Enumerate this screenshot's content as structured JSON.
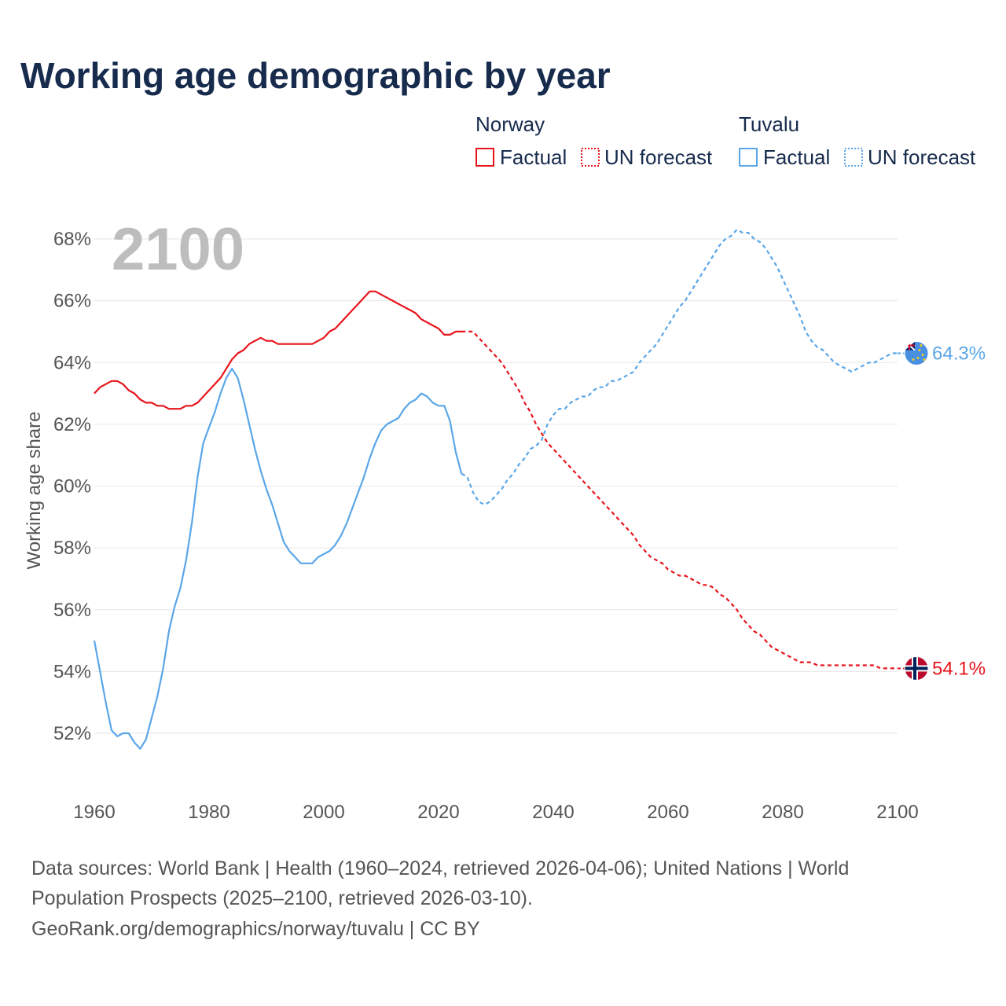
{
  "title": "Working age demographic by year",
  "current_year": "2100",
  "legend": {
    "norway": {
      "name": "Norway",
      "factual": "Factual",
      "forecast": "UN forecast",
      "color": "#e8141c"
    },
    "tuvalu": {
      "name": "Tuvalu",
      "factual": "Factual",
      "forecast": "UN forecast",
      "color": "#5aa6e8"
    }
  },
  "source": {
    "line1": "Data sources: World Bank | Health (1960–2024, retrieved 2026-04-06); United Nations | World",
    "line2": "Population Prospects (2025–2100, retrieved 2026-03-10).",
    "line3": "GeoRank.org/demographics/norway/tuvalu | CC BY"
  },
  "chart_data": {
    "type": "line",
    "title": "Working age demographic by year",
    "xlabel": "",
    "ylabel": "Working age share",
    "xlim": [
      1960,
      2103
    ],
    "ylim": [
      50.5,
      69.5
    ],
    "x_ticks": [
      "1960",
      "1980",
      "2000",
      "2020",
      "2040",
      "2060",
      "2080",
      "2100"
    ],
    "y_ticks": [
      "52%",
      "54%",
      "56%",
      "58%",
      "60%",
      "62%",
      "64%",
      "66%",
      "68%"
    ],
    "grid": true,
    "forecast_start": 2024,
    "series": [
      {
        "name": "Norway",
        "color": "#e8141c",
        "end_label": "54.1%",
        "factual": [
          [
            1960,
            63.0
          ],
          [
            1961,
            63.2
          ],
          [
            1962,
            63.3
          ],
          [
            1963,
            63.4
          ],
          [
            1964,
            63.4
          ],
          [
            1965,
            63.3
          ],
          [
            1966,
            63.1
          ],
          [
            1967,
            63.0
          ],
          [
            1968,
            62.8
          ],
          [
            1969,
            62.7
          ],
          [
            1970,
            62.7
          ],
          [
            1971,
            62.6
          ],
          [
            1972,
            62.6
          ],
          [
            1973,
            62.5
          ],
          [
            1974,
            62.5
          ],
          [
            1975,
            62.5
          ],
          [
            1976,
            62.6
          ],
          [
            1977,
            62.6
          ],
          [
            1978,
            62.7
          ],
          [
            1979,
            62.9
          ],
          [
            1980,
            63.1
          ],
          [
            1981,
            63.3
          ],
          [
            1982,
            63.5
          ],
          [
            1983,
            63.8
          ],
          [
            1984,
            64.1
          ],
          [
            1985,
            64.3
          ],
          [
            1986,
            64.4
          ],
          [
            1987,
            64.6
          ],
          [
            1988,
            64.7
          ],
          [
            1989,
            64.8
          ],
          [
            1990,
            64.7
          ],
          [
            1991,
            64.7
          ],
          [
            1992,
            64.6
          ],
          [
            1993,
            64.6
          ],
          [
            1994,
            64.6
          ],
          [
            1995,
            64.6
          ],
          [
            1996,
            64.6
          ],
          [
            1997,
            64.6
          ],
          [
            1998,
            64.6
          ],
          [
            1999,
            64.7
          ],
          [
            2000,
            64.8
          ],
          [
            2001,
            65.0
          ],
          [
            2002,
            65.1
          ],
          [
            2003,
            65.3
          ],
          [
            2004,
            65.5
          ],
          [
            2005,
            65.7
          ],
          [
            2006,
            65.9
          ],
          [
            2007,
            66.1
          ],
          [
            2008,
            66.3
          ],
          [
            2009,
            66.3
          ],
          [
            2010,
            66.2
          ],
          [
            2011,
            66.1
          ],
          [
            2012,
            66.0
          ],
          [
            2013,
            65.9
          ],
          [
            2014,
            65.8
          ],
          [
            2015,
            65.7
          ],
          [
            2016,
            65.6
          ],
          [
            2017,
            65.4
          ],
          [
            2018,
            65.3
          ],
          [
            2019,
            65.2
          ],
          [
            2020,
            65.1
          ],
          [
            2021,
            64.9
          ],
          [
            2022,
            64.9
          ],
          [
            2023,
            65.0
          ],
          [
            2024,
            65.0
          ]
        ],
        "forecast": [
          [
            2024,
            65.0
          ],
          [
            2025,
            65.0
          ],
          [
            2026,
            65.0
          ],
          [
            2027,
            64.8
          ],
          [
            2028,
            64.6
          ],
          [
            2029,
            64.4
          ],
          [
            2030,
            64.2
          ],
          [
            2031,
            64.0
          ],
          [
            2032,
            63.7
          ],
          [
            2033,
            63.4
          ],
          [
            2034,
            63.1
          ],
          [
            2035,
            62.7
          ],
          [
            2036,
            62.4
          ],
          [
            2037,
            62.0
          ],
          [
            2038,
            61.7
          ],
          [
            2039,
            61.4
          ],
          [
            2040,
            61.2
          ],
          [
            2041,
            61.0
          ],
          [
            2042,
            60.8
          ],
          [
            2043,
            60.6
          ],
          [
            2044,
            60.4
          ],
          [
            2045,
            60.2
          ],
          [
            2046,
            60.0
          ],
          [
            2047,
            59.8
          ],
          [
            2048,
            59.6
          ],
          [
            2049,
            59.4
          ],
          [
            2050,
            59.2
          ],
          [
            2051,
            59.0
          ],
          [
            2052,
            58.8
          ],
          [
            2053,
            58.6
          ],
          [
            2054,
            58.4
          ],
          [
            2055,
            58.1
          ],
          [
            2056,
            57.9
          ],
          [
            2057,
            57.7
          ],
          [
            2058,
            57.6
          ],
          [
            2059,
            57.5
          ],
          [
            2060,
            57.3
          ],
          [
            2061,
            57.2
          ],
          [
            2062,
            57.1
          ],
          [
            2063,
            57.1
          ],
          [
            2064,
            57.0
          ],
          [
            2065,
            56.9
          ],
          [
            2066,
            56.8
          ],
          [
            2067,
            56.8
          ],
          [
            2068,
            56.7
          ],
          [
            2069,
            56.5
          ],
          [
            2070,
            56.4
          ],
          [
            2071,
            56.2
          ],
          [
            2072,
            56.0
          ],
          [
            2073,
            55.7
          ],
          [
            2074,
            55.5
          ],
          [
            2075,
            55.3
          ],
          [
            2076,
            55.2
          ],
          [
            2077,
            55.0
          ],
          [
            2078,
            54.8
          ],
          [
            2079,
            54.7
          ],
          [
            2080,
            54.6
          ],
          [
            2081,
            54.5
          ],
          [
            2082,
            54.4
          ],
          [
            2083,
            54.3
          ],
          [
            2084,
            54.3
          ],
          [
            2085,
            54.3
          ],
          [
            2086,
            54.2
          ],
          [
            2087,
            54.2
          ],
          [
            2088,
            54.2
          ],
          [
            2089,
            54.2
          ],
          [
            2090,
            54.2
          ],
          [
            2091,
            54.2
          ],
          [
            2092,
            54.2
          ],
          [
            2093,
            54.2
          ],
          [
            2094,
            54.2
          ],
          [
            2095,
            54.2
          ],
          [
            2096,
            54.2
          ],
          [
            2097,
            54.1
          ],
          [
            2098,
            54.1
          ],
          [
            2099,
            54.1
          ],
          [
            2100,
            54.1
          ]
        ]
      },
      {
        "name": "Tuvalu",
        "color": "#5aa6e8",
        "end_label": "64.3%",
        "factual": [
          [
            1960,
            55.0
          ],
          [
            1961,
            54.0
          ],
          [
            1962,
            53.0
          ],
          [
            1963,
            52.1
          ],
          [
            1964,
            51.9
          ],
          [
            1965,
            52.0
          ],
          [
            1966,
            52.0
          ],
          [
            1967,
            51.7
          ],
          [
            1968,
            51.5
          ],
          [
            1969,
            51.8
          ],
          [
            1970,
            52.5
          ],
          [
            1971,
            53.2
          ],
          [
            1972,
            54.1
          ],
          [
            1973,
            55.3
          ],
          [
            1974,
            56.1
          ],
          [
            1975,
            56.7
          ],
          [
            1976,
            57.6
          ],
          [
            1977,
            58.8
          ],
          [
            1978,
            60.3
          ],
          [
            1979,
            61.4
          ],
          [
            1980,
            61.9
          ],
          [
            1981,
            62.4
          ],
          [
            1982,
            63.0
          ],
          [
            1983,
            63.5
          ],
          [
            1984,
            63.8
          ],
          [
            1985,
            63.5
          ],
          [
            1986,
            62.8
          ],
          [
            1987,
            62.0
          ],
          [
            1988,
            61.2
          ],
          [
            1989,
            60.5
          ],
          [
            1990,
            59.9
          ],
          [
            1991,
            59.4
          ],
          [
            1992,
            58.8
          ],
          [
            1993,
            58.2
          ],
          [
            1994,
            57.9
          ],
          [
            1995,
            57.7
          ],
          [
            1996,
            57.5
          ],
          [
            1997,
            57.5
          ],
          [
            1998,
            57.5
          ],
          [
            1999,
            57.7
          ],
          [
            2000,
            57.8
          ],
          [
            2001,
            57.9
          ],
          [
            2002,
            58.1
          ],
          [
            2003,
            58.4
          ],
          [
            2004,
            58.8
          ],
          [
            2005,
            59.3
          ],
          [
            2006,
            59.8
          ],
          [
            2007,
            60.3
          ],
          [
            2008,
            60.9
          ],
          [
            2009,
            61.4
          ],
          [
            2010,
            61.8
          ],
          [
            2011,
            62.0
          ],
          [
            2012,
            62.1
          ],
          [
            2013,
            62.2
          ],
          [
            2014,
            62.5
          ],
          [
            2015,
            62.7
          ],
          [
            2016,
            62.8
          ],
          [
            2017,
            63.0
          ],
          [
            2018,
            62.9
          ],
          [
            2019,
            62.7
          ],
          [
            2020,
            62.6
          ],
          [
            2021,
            62.6
          ],
          [
            2022,
            62.1
          ],
          [
            2023,
            61.1
          ],
          [
            2024,
            60.4
          ]
        ],
        "forecast": [
          [
            2024,
            60.4
          ],
          [
            2025,
            60.3
          ],
          [
            2026,
            59.8
          ],
          [
            2027,
            59.5
          ],
          [
            2028,
            59.4
          ],
          [
            2029,
            59.5
          ],
          [
            2030,
            59.7
          ],
          [
            2031,
            59.9
          ],
          [
            2032,
            60.2
          ],
          [
            2033,
            60.4
          ],
          [
            2034,
            60.7
          ],
          [
            2035,
            60.9
          ],
          [
            2036,
            61.2
          ],
          [
            2037,
            61.3
          ],
          [
            2038,
            61.5
          ],
          [
            2039,
            62.0
          ],
          [
            2040,
            62.3
          ],
          [
            2041,
            62.5
          ],
          [
            2042,
            62.5
          ],
          [
            2043,
            62.7
          ],
          [
            2044,
            62.8
          ],
          [
            2045,
            62.9
          ],
          [
            2046,
            62.9
          ],
          [
            2047,
            63.1
          ],
          [
            2048,
            63.2
          ],
          [
            2049,
            63.2
          ],
          [
            2050,
            63.4
          ],
          [
            2051,
            63.4
          ],
          [
            2052,
            63.5
          ],
          [
            2053,
            63.6
          ],
          [
            2054,
            63.7
          ],
          [
            2055,
            64.0
          ],
          [
            2056,
            64.2
          ],
          [
            2057,
            64.4
          ],
          [
            2058,
            64.6
          ],
          [
            2059,
            64.9
          ],
          [
            2060,
            65.2
          ],
          [
            2061,
            65.5
          ],
          [
            2062,
            65.8
          ],
          [
            2063,
            66.0
          ],
          [
            2064,
            66.3
          ],
          [
            2065,
            66.6
          ],
          [
            2066,
            66.9
          ],
          [
            2067,
            67.2
          ],
          [
            2068,
            67.5
          ],
          [
            2069,
            67.8
          ],
          [
            2070,
            68.0
          ],
          [
            2071,
            68.1
          ],
          [
            2072,
            68.3
          ],
          [
            2073,
            68.2
          ],
          [
            2074,
            68.2
          ],
          [
            2075,
            68.0
          ],
          [
            2076,
            67.9
          ],
          [
            2077,
            67.7
          ],
          [
            2078,
            67.4
          ],
          [
            2079,
            67.1
          ],
          [
            2080,
            66.7
          ],
          [
            2081,
            66.3
          ],
          [
            2082,
            65.9
          ],
          [
            2083,
            65.5
          ],
          [
            2084,
            65.0
          ],
          [
            2085,
            64.7
          ],
          [
            2086,
            64.5
          ],
          [
            2087,
            64.4
          ],
          [
            2088,
            64.2
          ],
          [
            2089,
            64.0
          ],
          [
            2090,
            63.9
          ],
          [
            2091,
            63.8
          ],
          [
            2092,
            63.7
          ],
          [
            2093,
            63.8
          ],
          [
            2094,
            63.9
          ],
          [
            2095,
            64.0
          ],
          [
            2096,
            64.0
          ],
          [
            2097,
            64.1
          ],
          [
            2098,
            64.2
          ],
          [
            2099,
            64.3
          ],
          [
            2100,
            64.3
          ]
        ]
      }
    ]
  }
}
